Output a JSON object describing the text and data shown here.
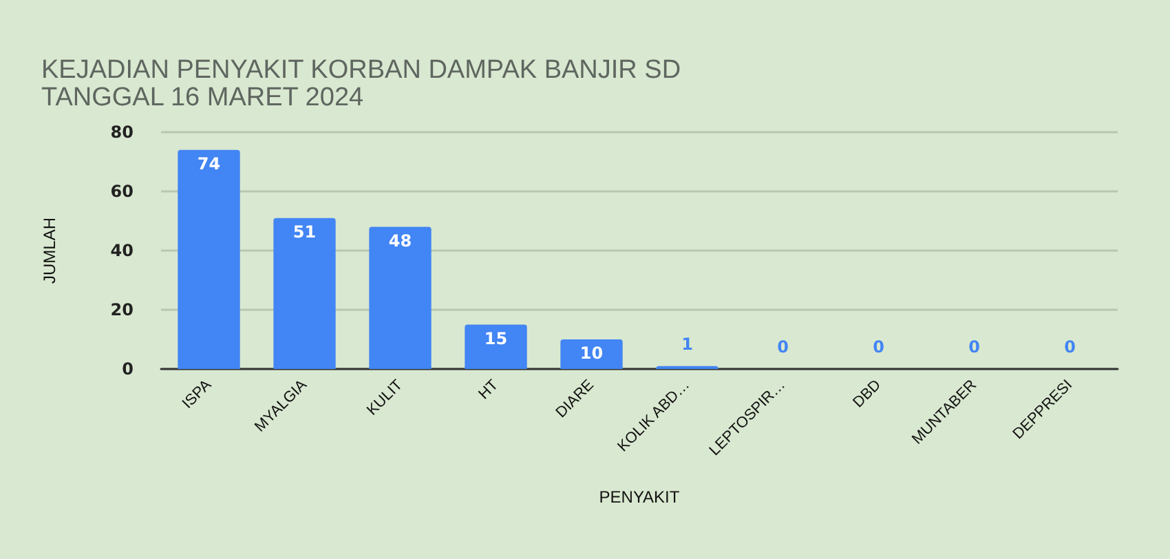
{
  "chart_data": {
    "type": "bar",
    "title": "KEJADIAN PENYAKIT KORBAN DAMPAK BANJIR SD\nTANGGAL 16 MARET 2024",
    "xlabel": "PENYAKIT",
    "ylabel": "JUMLAH",
    "categories": [
      "ISPA",
      "MYALGIA",
      "KULIT",
      "HT",
      "DIARE",
      "KOLIK ABD…",
      "LEPTOSPIR…",
      "DBD",
      "MUNTABER",
      "DEPPRESI"
    ],
    "values": [
      74,
      51,
      48,
      15,
      10,
      1,
      0,
      0,
      0,
      0
    ],
    "color": "#4285f4",
    "ylim": [
      0,
      80
    ],
    "yticks": [
      0,
      20,
      40,
      60,
      80
    ],
    "grid": "y",
    "data_labels": true
  }
}
